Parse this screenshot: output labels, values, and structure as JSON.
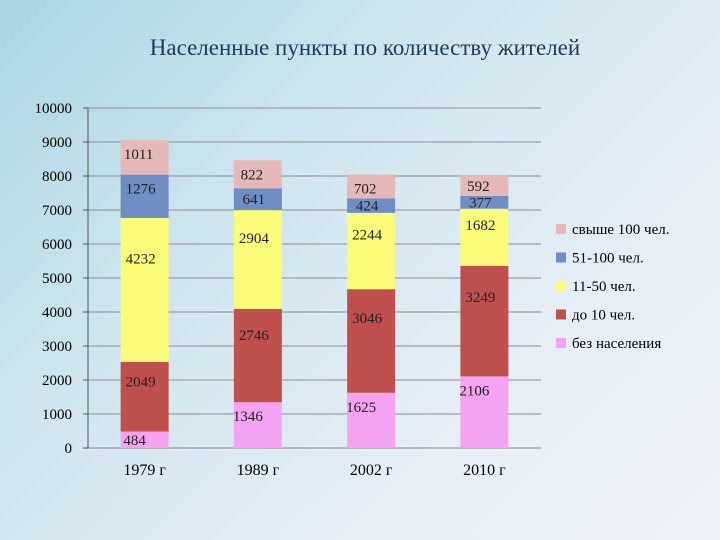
{
  "chart_data": {
    "type": "bar",
    "stacked": true,
    "title": "Населенные пункты по количеству жителей",
    "categories": [
      "1979 г",
      "1989 г",
      "2002 г",
      "2010 г"
    ],
    "ylim": [
      0,
      10000
    ],
    "yticks": [
      0,
      1000,
      2000,
      3000,
      4000,
      5000,
      6000,
      7000,
      8000,
      9000,
      10000
    ],
    "grid": true,
    "legend_position": "right",
    "series": [
      {
        "name": "без населения",
        "color": "#f4a3f2",
        "values": [
          484,
          1346,
          1625,
          2106
        ]
      },
      {
        "name": "до 10 чел.",
        "color": "#c0504d",
        "values": [
          2049,
          2746,
          3046,
          3249
        ]
      },
      {
        "name": "11-50 чел.",
        "color": "#fbfb7a",
        "values": [
          4232,
          2904,
          2244,
          1682
        ]
      },
      {
        "name": "51-100 чел.",
        "color": "#6f8fc4",
        "values": [
          1276,
          641,
          424,
          377
        ]
      },
      {
        "name": "свыше 100 чел.",
        "color": "#e6b8b7",
        "values": [
          1011,
          822,
          702,
          592
        ]
      }
    ],
    "legend_order": [
      4,
      3,
      2,
      1,
      0
    ]
  }
}
